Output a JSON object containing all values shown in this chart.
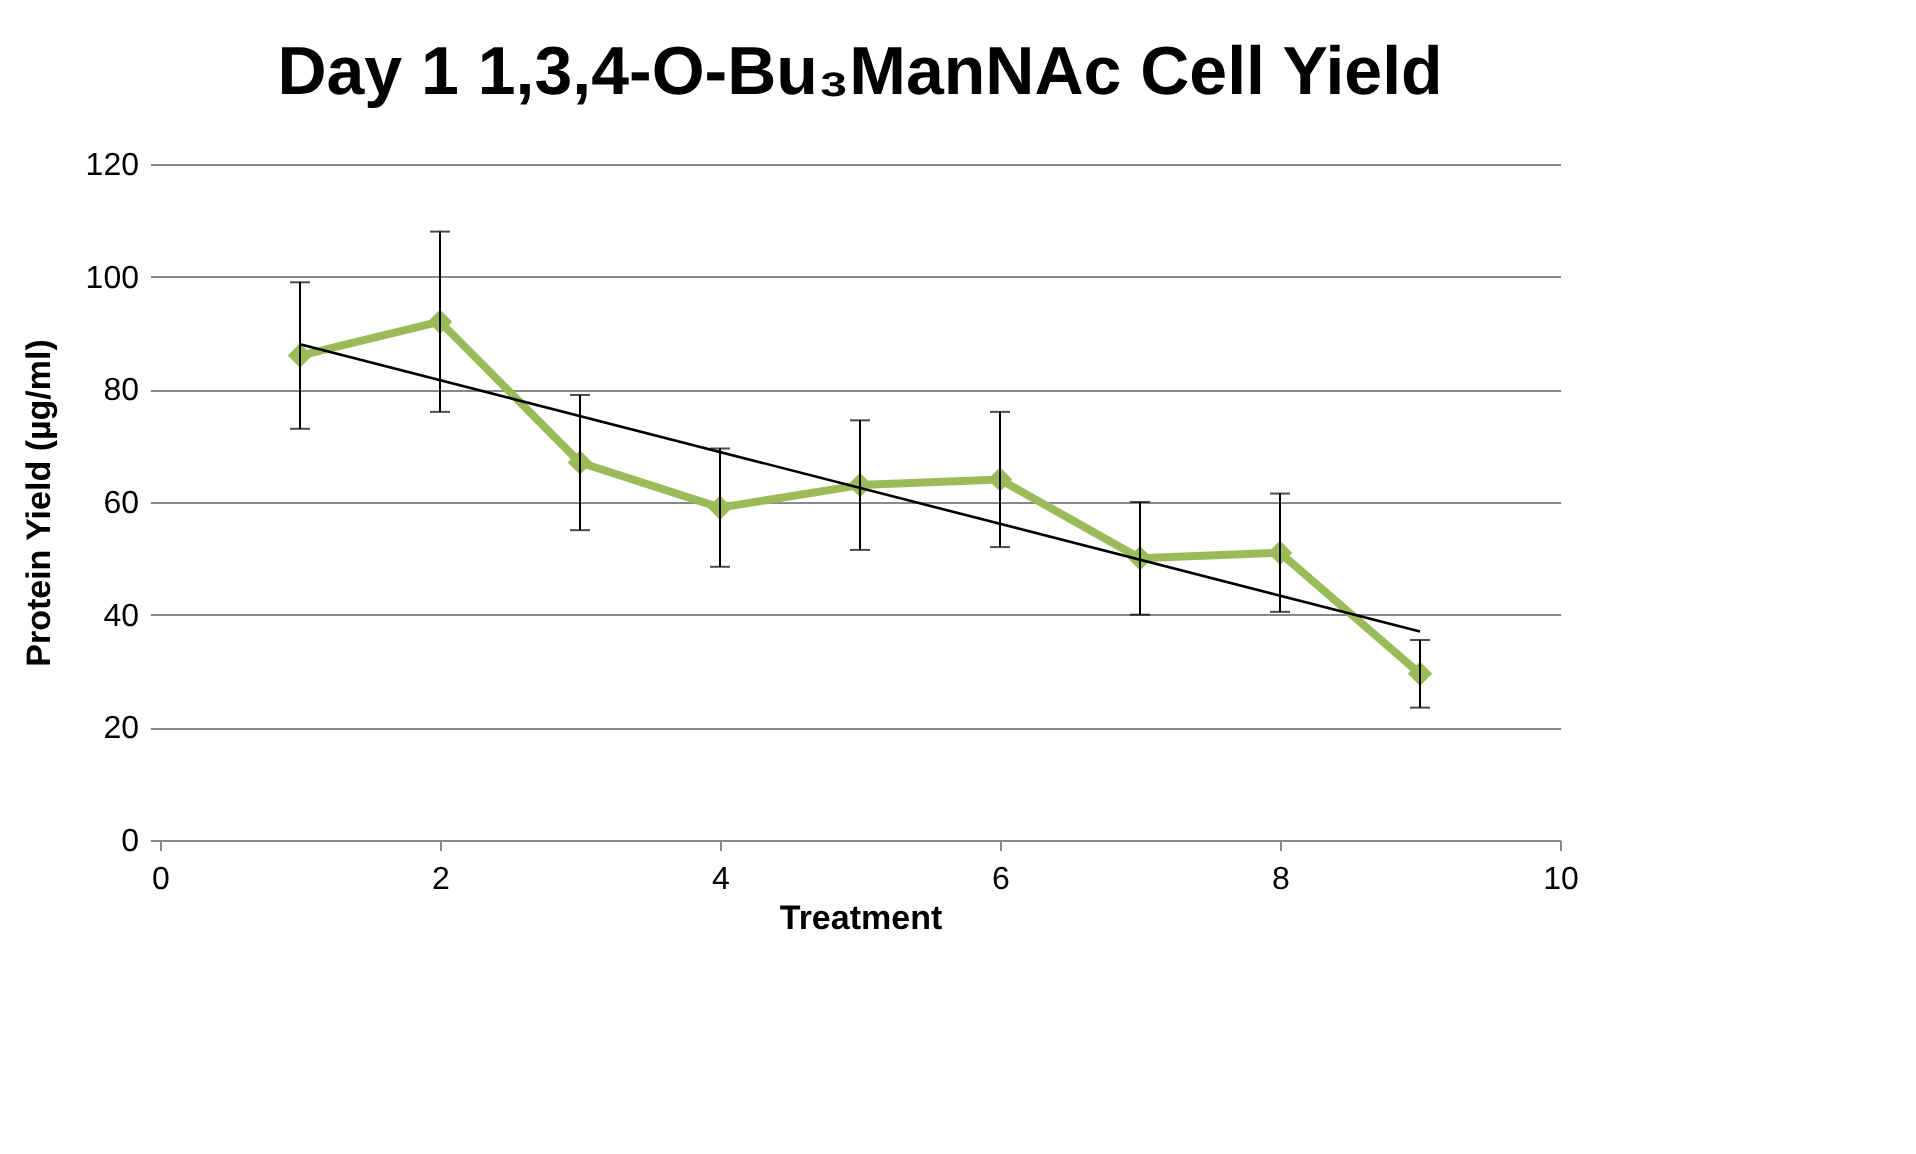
{
  "chart_data": {
    "type": "line",
    "title": "Day 1 1,3,4-O-Bu₃ManNAc Cell Yield",
    "xlabel": "Treatment",
    "ylabel": "Protein Yield (µg/ml)",
    "x": [
      1,
      2,
      3,
      4,
      5,
      6,
      7,
      8,
      9
    ],
    "series": [
      {
        "color": "#9bbb59",
        "marker": "diamond",
        "values": [
          86,
          92,
          67,
          59,
          63,
          64,
          50,
          51,
          29.5
        ],
        "errors": [
          13,
          16,
          12,
          10.5,
          11.5,
          12,
          10,
          10.5,
          6
        ]
      },
      {
        "color": "#000000",
        "marker": "none",
        "x": [
          1,
          9
        ],
        "values": [
          88,
          37
        ]
      }
    ],
    "xlim": [
      0,
      10
    ],
    "xticks": [
      0,
      2,
      4,
      6,
      8,
      10
    ],
    "ylim": [
      0,
      120
    ],
    "yticks": [
      0,
      20,
      40,
      60,
      80,
      100,
      120
    ],
    "grid": "y"
  }
}
